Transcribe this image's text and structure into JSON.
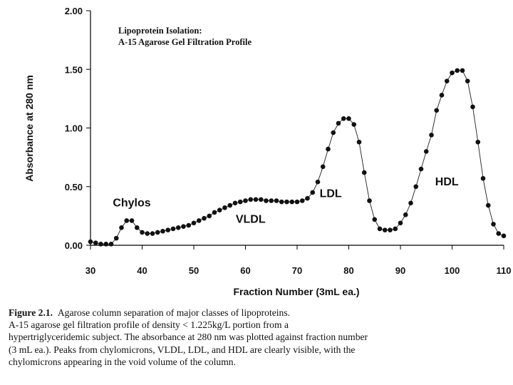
{
  "chart_data": {
    "type": "scatter",
    "inset_title": [
      "Lipoprotein Isolation:",
      "A-15 Agarose Gel Filtration Profile"
    ],
    "xlabel": "Fraction Number (3mL ea.)",
    "ylabel": "Absorbance at 280 nm",
    "xlim": [
      30,
      110
    ],
    "ylim": [
      0,
      2
    ],
    "x_ticks": [
      30,
      40,
      50,
      60,
      70,
      80,
      90,
      100,
      110
    ],
    "x_tick_labels": [
      "30",
      "40",
      "50",
      "60",
      "70",
      "80",
      "90",
      "100",
      "110"
    ],
    "y_ticks": [
      0,
      0.5,
      1,
      1.5,
      2
    ],
    "y_tick_labels": [
      "0.00",
      "0.50",
      "1.00",
      "1.50",
      "2.00"
    ],
    "grid": false,
    "legend": "none",
    "point_style": "filled circle markers connected by thin line",
    "annotations": [
      {
        "text": "Chylos",
        "x": 38,
        "y": 0.33
      },
      {
        "text": "VLDL",
        "x": 61,
        "y": 0.19
      },
      {
        "text": "LDL",
        "x": 76.5,
        "y": 0.41
      },
      {
        "text": "HDL",
        "x": 99,
        "y": 0.51
      }
    ],
    "series": [
      {
        "x": [
          30,
          31,
          32,
          33,
          34,
          35,
          36,
          37,
          38,
          39,
          40,
          41,
          42,
          43,
          44,
          45,
          46,
          47,
          48,
          49,
          50,
          51,
          52,
          53,
          54,
          55,
          56,
          57,
          58,
          59,
          60,
          61,
          62,
          63,
          64,
          65,
          66,
          67,
          68,
          69,
          70,
          71,
          72,
          73,
          74,
          75,
          76,
          77,
          78,
          79,
          80,
          81,
          82,
          83,
          84,
          85,
          86,
          87,
          88,
          89,
          90,
          91,
          92,
          93,
          94,
          95,
          96,
          97,
          98,
          99,
          100,
          101,
          102,
          103,
          104,
          105,
          106,
          107,
          108,
          109,
          110
        ],
        "y": [
          0.03,
          0.02,
          0.01,
          0.01,
          0.01,
          0.06,
          0.15,
          0.21,
          0.21,
          0.15,
          0.11,
          0.1,
          0.1,
          0.11,
          0.12,
          0.13,
          0.14,
          0.15,
          0.16,
          0.17,
          0.19,
          0.21,
          0.23,
          0.25,
          0.28,
          0.3,
          0.32,
          0.34,
          0.36,
          0.37,
          0.38,
          0.39,
          0.39,
          0.39,
          0.38,
          0.38,
          0.38,
          0.37,
          0.37,
          0.37,
          0.37,
          0.38,
          0.4,
          0.45,
          0.54,
          0.67,
          0.82,
          0.96,
          1.04,
          1.08,
          1.08,
          1.03,
          0.88,
          0.62,
          0.38,
          0.22,
          0.14,
          0.13,
          0.13,
          0.14,
          0.19,
          0.26,
          0.36,
          0.5,
          0.65,
          0.8,
          0.94,
          1.15,
          1.28,
          1.4,
          1.47,
          1.49,
          1.49,
          1.4,
          1.18,
          0.88,
          0.57,
          0.34,
          0.18,
          0.1,
          0.08
        ]
      }
    ]
  },
  "caption": {
    "figure_label": "Figure 2.1.",
    "lines": [
      "Agarose column separation of major classes of lipoproteins.",
      "A-15 agarose gel filtration profile of density < 1.225kg/L portion from a",
      "hypertriglyceridemic subject. The absorbance at 280 nm was plotted against fraction number",
      "(3 mL ea.). Peaks from chylomicrons, VLDL, LDL, and HDL are clearly visible, with the",
      "chylomicrons appearing in the void volume of the column."
    ]
  }
}
